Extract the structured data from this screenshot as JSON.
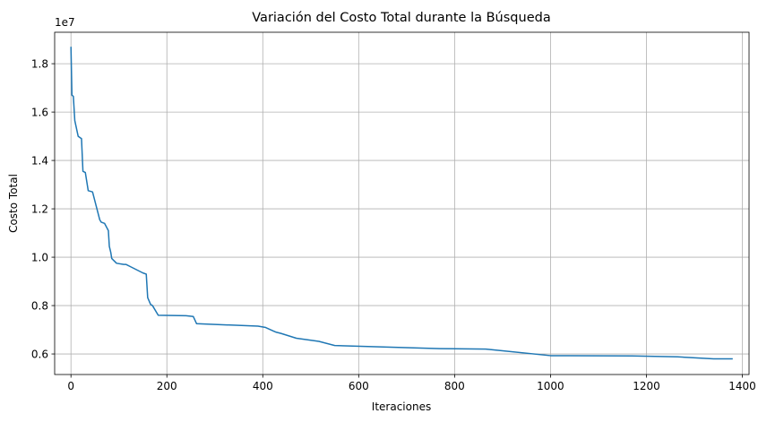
{
  "chart_data": {
    "type": "line",
    "title": "Variación del Costo Total durante la Búsqueda",
    "xlabel": "Iteraciones",
    "ylabel": "Costo Total",
    "y_offset_label": "1e7",
    "xlim": [
      -34,
      1414
    ],
    "ylim": [
      5150000,
      19300000
    ],
    "x_ticks": [
      0,
      200,
      400,
      600,
      800,
      1000,
      1200,
      1400
    ],
    "x_tick_labels": [
      "0",
      "200",
      "400",
      "600",
      "800",
      "1000",
      "1200",
      "1400"
    ],
    "y_ticks": [
      6000000,
      8000000,
      10000000,
      12000000,
      14000000,
      16000000,
      18000000
    ],
    "y_tick_labels": [
      "0.6",
      "0.8",
      "1.0",
      "1.2",
      "1.4",
      "1.6",
      "1.8"
    ],
    "grid": true,
    "line_color": "#1f77b4",
    "series": [
      {
        "x": [
          0,
          2,
          2,
          5,
          5,
          8,
          8,
          15,
          15,
          22,
          22,
          25,
          25,
          30,
          30,
          36,
          36,
          45,
          45,
          60,
          60,
          63,
          63,
          70,
          70,
          78,
          78,
          80,
          80,
          83,
          83,
          85,
          85,
          95,
          95,
          110,
          110,
          115,
          115,
          125,
          125,
          150,
          150,
          157,
          157,
          160,
          160,
          166,
          166,
          170,
          170,
          182,
          182,
          240,
          240,
          255,
          255,
          262,
          262,
          390,
          390,
          405,
          405,
          422,
          422,
          428,
          428,
          438,
          438,
          470,
          470,
          517,
          517,
          550,
          550,
          770,
          770,
          865,
          865,
          900,
          900,
          1000,
          1000,
          1170,
          1170,
          1265,
          1265,
          1340,
          1340,
          1380
        ],
        "y": [
          18700000,
          16700000,
          16700000,
          16650000,
          16650000,
          15650000,
          15650000,
          15000000,
          15000000,
          14900000,
          14900000,
          13550000,
          13550000,
          13500000,
          13500000,
          12750000,
          12750000,
          12700000,
          12700000,
          11550000,
          11550000,
          11450000,
          11450000,
          11400000,
          11400000,
          11100000,
          11100000,
          10450000,
          10450000,
          10200000,
          10200000,
          9950000,
          9950000,
          9750000,
          9750000,
          9700000,
          9700000,
          9700000,
          9700000,
          9600000,
          9600000,
          9350000,
          9350000,
          9300000,
          9300000,
          8330000,
          8330000,
          8050000,
          8050000,
          8000000,
          8000000,
          7600000,
          7600000,
          7580000,
          7580000,
          7550000,
          7550000,
          7250000,
          7250000,
          7150000,
          7150000,
          7100000,
          7100000,
          6950000,
          6950000,
          6900000,
          6900000,
          6850000,
          6850000,
          6650000,
          6650000,
          6520000,
          6520000,
          6350000,
          6350000,
          6220000,
          6220000,
          6200000,
          6200000,
          6130000,
          6130000,
          5930000,
          5930000,
          5920000,
          5920000,
          5880000,
          5880000,
          5800000,
          5800000,
          5800000
        ]
      }
    ]
  }
}
